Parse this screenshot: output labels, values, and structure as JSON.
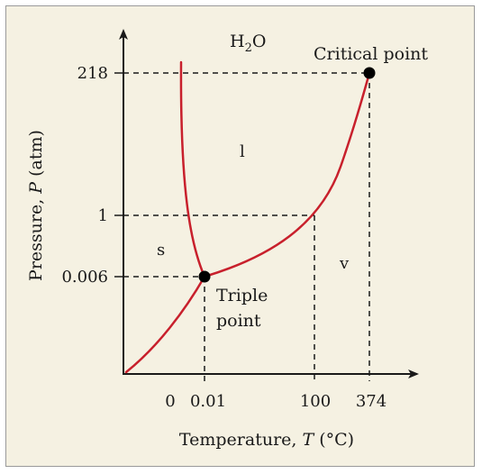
{
  "diagram": {
    "substance": {
      "base": "H",
      "sub": "2",
      "rest": "O"
    },
    "regions": {
      "solid": "s",
      "liquid": "l",
      "vapor": "v"
    },
    "labels": {
      "critical_point": "Critical point",
      "triple_point_line1": "Triple",
      "triple_point_line2": "point"
    },
    "x_axis": {
      "label_prefix": "Temperature, ",
      "label_var": "T",
      "label_suffix": " (°C)",
      "ticks": {
        "zero": "0",
        "triple": "0.01",
        "boil": "100",
        "critical": "374"
      }
    },
    "y_axis": {
      "label_prefix": "Pressure, ",
      "label_var": "P",
      "label_suffix": " (atm)",
      "ticks": {
        "triple": "0.006",
        "one": "1",
        "critical": "218"
      }
    },
    "colors": {
      "curve": "#c8202c",
      "background": "#f5f1e2",
      "ink": "#1a1a1a"
    }
  }
}
